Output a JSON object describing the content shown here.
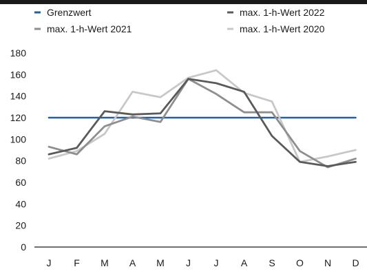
{
  "chart_data": {
    "type": "line",
    "title": "",
    "xlabel": "",
    "ylabel": "",
    "categories": [
      "J",
      "F",
      "M",
      "A",
      "M",
      "J",
      "J",
      "A",
      "S",
      "O",
      "N",
      "D"
    ],
    "ylim": [
      0,
      180
    ],
    "yticks": [
      0,
      20,
      40,
      60,
      80,
      100,
      120,
      140,
      160,
      180
    ],
    "grid": false,
    "legend_position": "top",
    "series": [
      {
        "name": "Grenzwert",
        "color": "#1f5fa3",
        "values": [
          120,
          120,
          120,
          120,
          120,
          120,
          120,
          120,
          120,
          120,
          120,
          120
        ]
      },
      {
        "name": "max. 1-h-Wert 2022",
        "color": "#5a5a5a",
        "values": [
          86,
          92,
          126,
          123,
          124,
          156,
          152,
          144,
          103,
          79,
          75,
          79
        ]
      },
      {
        "name": "max. 1-h-Wert 2021",
        "color": "#8e8e8e",
        "values": [
          93,
          86,
          112,
          121,
          116,
          156,
          142,
          125,
          125,
          89,
          74,
          82
        ]
      },
      {
        "name": "max. 1-h-Wert 2020",
        "color": "#c8c8c8",
        "values": [
          82,
          89,
          105,
          144,
          139,
          157,
          164,
          143,
          135,
          79,
          84,
          90
        ]
      }
    ]
  }
}
